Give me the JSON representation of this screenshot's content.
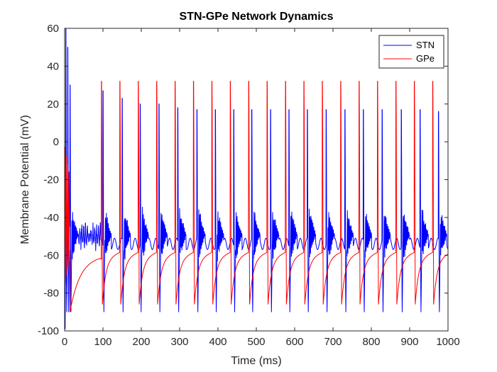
{
  "chart_data": {
    "type": "line",
    "title": "STN-GPe Network Dynamics",
    "xlabel": "Time (ms)",
    "ylabel": "Membrane Potential (mV)",
    "xlim": [
      0,
      1000
    ],
    "ylim": [
      -100,
      60
    ],
    "x_ticks": [
      0,
      100,
      200,
      300,
      400,
      500,
      600,
      700,
      800,
      900,
      1000
    ],
    "y_ticks": [
      -100,
      -80,
      -60,
      -40,
      -20,
      0,
      20,
      40,
      60
    ],
    "grid": false,
    "legend_position": "top-right",
    "series": [
      {
        "name": "STN",
        "color": "#0000ff",
        "spike_times_ms": [
          3,
          8,
          14,
          100,
          150,
          197,
          246,
          295,
          345,
          393,
          441,
          488,
          537,
          585,
          633,
          682,
          731,
          779,
          828,
          878,
          927,
          975
        ],
        "spike_peaks_mV": [
          60,
          50,
          30,
          27,
          23,
          20,
          20,
          18,
          17,
          17,
          17,
          17,
          17,
          17,
          17,
          17,
          17,
          17,
          17,
          17,
          17,
          16
        ],
        "trough_mV": -95,
        "resting_mV": -54
      },
      {
        "name": "GPe",
        "color": "#ff0000",
        "spike_times_ms": [
          1,
          5,
          10,
          96,
          144,
          192,
          240,
          288,
          336,
          384,
          432,
          480,
          528,
          576,
          624,
          672,
          720,
          768,
          816,
          864,
          912,
          960
        ],
        "spike_peaks_mV": [
          35,
          25,
          10,
          32,
          32,
          32,
          32,
          32,
          32,
          32,
          32,
          32,
          32,
          32,
          32,
          32,
          32,
          32,
          32,
          32,
          32,
          32
        ],
        "trough_mV": -86,
        "pre_spike_mV": -62
      }
    ]
  }
}
